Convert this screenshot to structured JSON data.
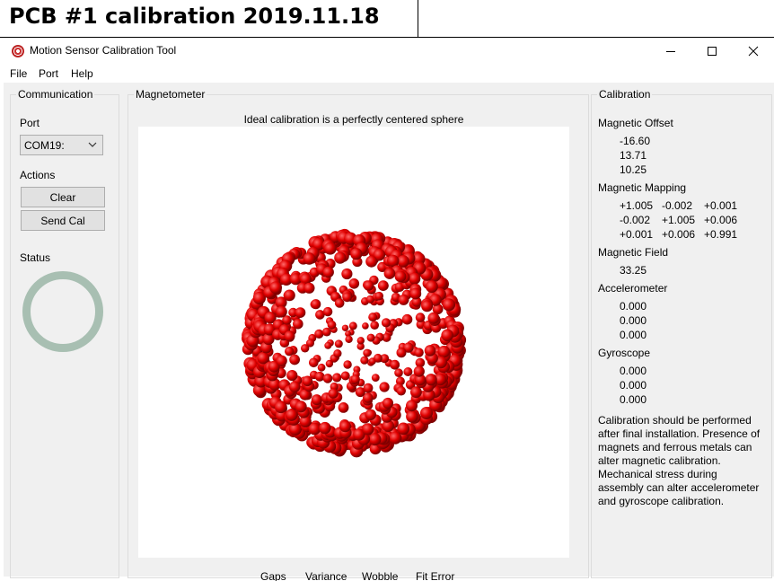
{
  "caption": "PCB #1 calibration  2019.11.18",
  "window": {
    "title": "Motion Sensor Calibration Tool",
    "menu": [
      "File",
      "Port",
      "Help"
    ]
  },
  "communication": {
    "title": "Communication",
    "port_label": "Port",
    "port_value": "COM19:",
    "actions_label": "Actions",
    "clear_button": "Clear",
    "send_cal_button": "Send Cal",
    "status_label": "Status",
    "status_color": "#a8bfb2"
  },
  "magnetometer": {
    "title": "Magnetometer",
    "subtitle": "Ideal calibration is a perfectly centered sphere",
    "point_color": "#e00000",
    "metrics": [
      "Gaps",
      "Variance",
      "Wobble",
      "Fit Error"
    ]
  },
  "calibration": {
    "title": "Calibration",
    "magnetic_offset": {
      "label": "Magnetic Offset",
      "values": [
        "-16.60",
        "13.71",
        "10.25"
      ]
    },
    "magnetic_mapping": {
      "label": "Magnetic Mapping",
      "rows": [
        [
          "+1.005",
          "-0.002",
          "+0.001"
        ],
        [
          "-0.002",
          "+1.005",
          "+0.006"
        ],
        [
          "+0.001",
          "+0.006",
          "+0.991"
        ]
      ]
    },
    "magnetic_field": {
      "label": "Magnetic Field",
      "value": "33.25"
    },
    "accelerometer": {
      "label": "Accelerometer",
      "values": [
        "0.000",
        "0.000",
        "0.000"
      ]
    },
    "gyroscope": {
      "label": "Gyroscope",
      "values": [
        "0.000",
        "0.000",
        "0.000"
      ]
    },
    "note": "Calibration should be performed after final installation.  Presence of magnets and ferrous metals can alter magnetic calibration. Mechanical stress during assembly can alter accelerometer and gyroscope calibration."
  }
}
